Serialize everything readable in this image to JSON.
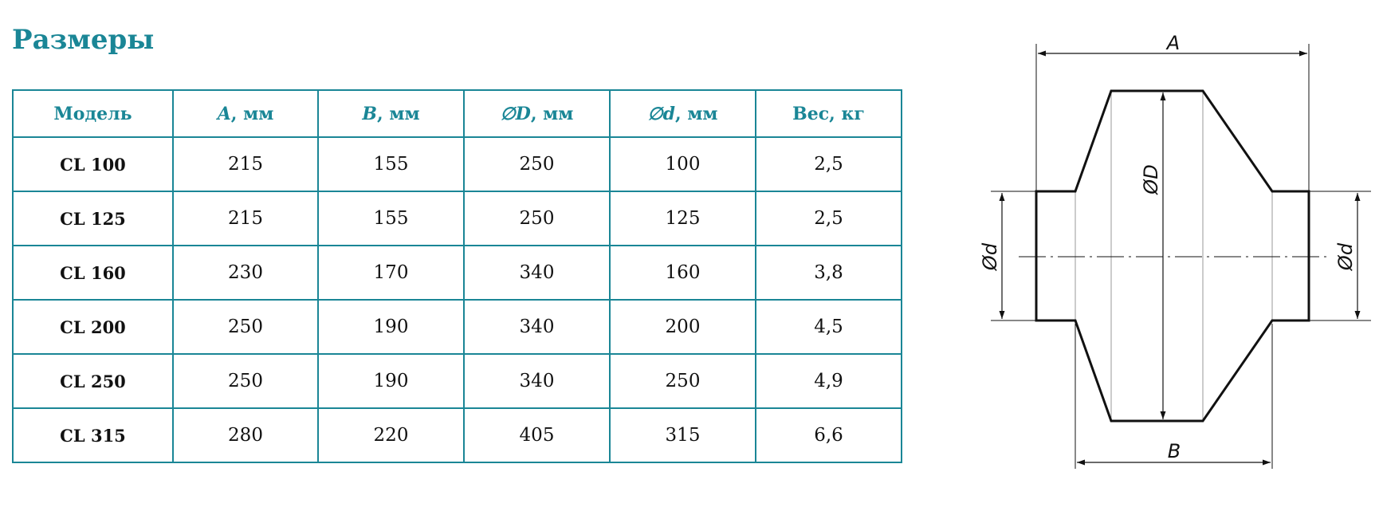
{
  "title": "Размеры",
  "table": {
    "headers": [
      {
        "sym": "",
        "rest": "Модель"
      },
      {
        "sym": "A",
        "rest": ", мм"
      },
      {
        "sym": "B",
        "rest": ", мм"
      },
      {
        "sym": "∅D",
        "rest": ", мм"
      },
      {
        "sym": "∅d",
        "rest": ", мм"
      },
      {
        "sym": "",
        "rest": "Вес, кг"
      }
    ],
    "rows": [
      [
        "CL 100",
        "215",
        "155",
        "250",
        "100",
        "2,5"
      ],
      [
        "CL 125",
        "215",
        "155",
        "250",
        "125",
        "2,5"
      ],
      [
        "CL 160",
        "230",
        "170",
        "340",
        "160",
        "3,8"
      ],
      [
        "CL 200",
        "250",
        "190",
        "340",
        "200",
        "4,5"
      ],
      [
        "CL 250",
        "250",
        "190",
        "340",
        "250",
        "4,9"
      ],
      [
        "CL 315",
        "280",
        "220",
        "405",
        "315",
        "6,6"
      ]
    ]
  },
  "drawing": {
    "label_A": "A",
    "label_B": "B",
    "label_D": "ØD",
    "label_d_left": "Ød",
    "label_d_right": "Ød"
  },
  "colors": {
    "accent": "#1a8696",
    "line": "#111111"
  }
}
